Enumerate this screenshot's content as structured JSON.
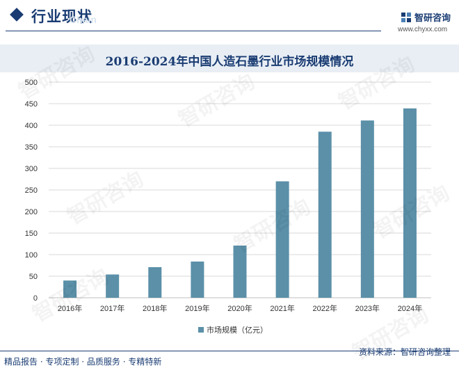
{
  "header": {
    "section_title": "行业现状",
    "section_subtitle": "Chain",
    "brand_name": "智研咨询",
    "brand_url": "www.chyxx.com"
  },
  "watermark_text": "智研咨询",
  "footer": {
    "left_text": "精品报告 · 专项定制 · 品质服务 · 专精特新",
    "source_text": "资料来源：智研咨询整理"
  },
  "colors": {
    "bar": "#5b90a8",
    "brand": "#1a3c73",
    "grid": "#d9d9d9"
  },
  "chart_data": {
    "type": "bar",
    "title": "2016-2024年中国人造石墨行业市场规模情况",
    "categories": [
      "2016年",
      "2017年",
      "2018年",
      "2019年",
      "2020年",
      "2021年",
      "2022年",
      "2023年",
      "2024年"
    ],
    "series": [
      {
        "name": "市场规模（亿元）",
        "values": [
          40,
          54,
          71,
          84,
          121,
          270,
          385,
          411,
          439
        ]
      }
    ],
    "ylim": [
      0,
      500
    ],
    "yticks": [
      0,
      50,
      100,
      150,
      200,
      250,
      300,
      350,
      400,
      450,
      500
    ],
    "grid": true,
    "legend_position": "bottom-center"
  }
}
